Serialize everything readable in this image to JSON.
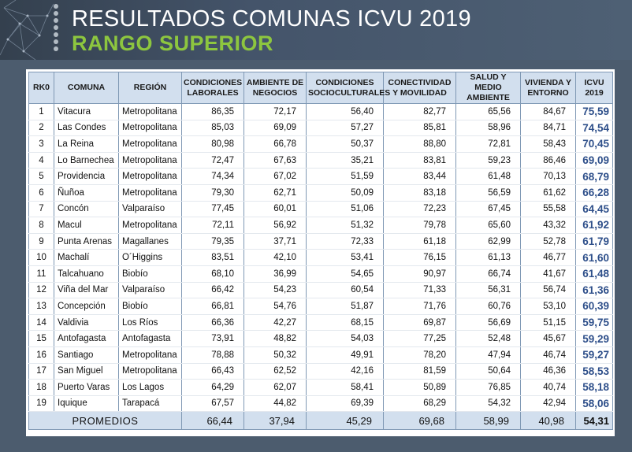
{
  "header": {
    "title": "RESULTADOS COMUNAS ICVU 2019",
    "subtitle": "RANGO SUPERIOR"
  },
  "table": {
    "columns": [
      "RK0",
      "COMUNA",
      "REGIÓN",
      "CONDICIONES LABORALES",
      "AMBIENTE DE NEGOCIOS",
      "CONDICIONES SOCIOCULTURALES",
      "CONECTIVIDAD Y MOVILIDAD",
      "SALUD Y MEDIO AMBIENTE",
      "VIVIENDA Y ENTORNO",
      "ICVU 2019"
    ],
    "rows": [
      [
        "1",
        "Vitacura",
        "Metropolitana",
        "86,35",
        "72,17",
        "56,40",
        "82,77",
        "65,56",
        "84,67",
        "75,59"
      ],
      [
        "2",
        "Las Condes",
        "Metropolitana",
        "85,03",
        "69,09",
        "57,27",
        "85,81",
        "58,96",
        "84,71",
        "74,54"
      ],
      [
        "3",
        "La Reina",
        "Metropolitana",
        "80,98",
        "66,78",
        "50,37",
        "88,80",
        "72,81",
        "58,43",
        "70,45"
      ],
      [
        "4",
        "Lo Barnechea",
        "Metropolitana",
        "72,47",
        "67,63",
        "35,21",
        "83,81",
        "59,23",
        "86,46",
        "69,09"
      ],
      [
        "5",
        "Providencia",
        "Metropolitana",
        "74,34",
        "67,02",
        "51,59",
        "83,44",
        "61,48",
        "70,13",
        "68,79"
      ],
      [
        "6",
        "Ñuñoa",
        "Metropolitana",
        "79,30",
        "62,71",
        "50,09",
        "83,18",
        "56,59",
        "61,62",
        "66,28"
      ],
      [
        "7",
        "Concón",
        "Valparaíso",
        "77,45",
        "60,01",
        "51,06",
        "72,23",
        "67,45",
        "55,58",
        "64,45"
      ],
      [
        "8",
        "Macul",
        "Metropolitana",
        "72,11",
        "56,92",
        "51,32",
        "79,78",
        "65,60",
        "43,32",
        "61,92"
      ],
      [
        "9",
        "Punta Arenas",
        "Magallanes",
        "79,35",
        "37,71",
        "72,33",
        "61,18",
        "62,99",
        "52,78",
        "61,79"
      ],
      [
        "10",
        "Machalí",
        "O´Higgins",
        "83,51",
        "42,10",
        "53,41",
        "76,15",
        "61,13",
        "46,77",
        "61,60"
      ],
      [
        "11",
        "Talcahuano",
        "Biobío",
        "68,10",
        "36,99",
        "54,65",
        "90,97",
        "66,74",
        "41,67",
        "61,48"
      ],
      [
        "12",
        "Viña del Mar",
        "Valparaíso",
        "66,42",
        "54,23",
        "60,54",
        "71,33",
        "56,31",
        "56,74",
        "61,36"
      ],
      [
        "13",
        "Concepción",
        "Biobío",
        "66,81",
        "54,76",
        "51,87",
        "71,76",
        "60,76",
        "53,10",
        "60,39"
      ],
      [
        "14",
        "Valdivia",
        "Los Ríos",
        "66,36",
        "42,27",
        "68,15",
        "69,87",
        "56,69",
        "51,15",
        "59,75"
      ],
      [
        "15",
        "Antofagasta",
        "Antofagasta",
        "73,91",
        "48,82",
        "54,03",
        "77,25",
        "52,48",
        "45,67",
        "59,29"
      ],
      [
        "16",
        "Santiago",
        "Metropolitana",
        "78,88",
        "50,32",
        "49,91",
        "78,20",
        "47,94",
        "46,74",
        "59,27"
      ],
      [
        "17",
        "San Miguel",
        "Metropolitana",
        "66,43",
        "62,52",
        "42,16",
        "81,59",
        "50,64",
        "46,36",
        "58,53"
      ],
      [
        "18",
        "Puerto Varas",
        "Los Lagos",
        "64,29",
        "62,07",
        "58,41",
        "50,89",
        "76,85",
        "40,74",
        "58,18"
      ],
      [
        "19",
        "Iquique",
        "Tarapacá",
        "67,57",
        "44,82",
        "69,39",
        "68,29",
        "54,32",
        "42,94",
        "58,06"
      ]
    ],
    "footer": {
      "label": "PROMEDIOS",
      "values": [
        "66,44",
        "37,94",
        "45,29",
        "69,68",
        "58,99",
        "40,98",
        "54,31"
      ]
    }
  },
  "colors": {
    "header_bg": "#44546a",
    "subtitle": "#8dc63f",
    "table_header_bg": "#d2dfee",
    "icvu_text": "#2e4f8a"
  }
}
